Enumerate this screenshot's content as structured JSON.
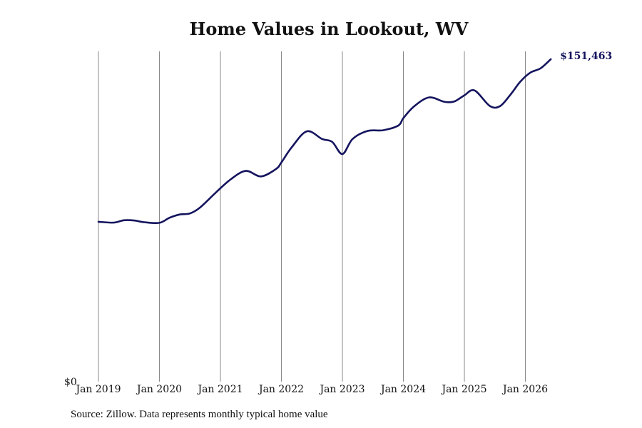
{
  "chart_data": {
    "type": "line",
    "title": "Home Values in Lookout, WV",
    "source": "Source: Zillow. Data represents monthly typical home value",
    "y_axis_label": "$0",
    "end_label": "$151,463",
    "ylim": [
      0,
      151463
    ],
    "x_ticks": [
      "Jan 2019",
      "Jan 2020",
      "Jan 2021",
      "Jan 2022",
      "Jan 2023",
      "Jan 2024",
      "Jan 2025",
      "Jan 2026"
    ],
    "grid": "vertical",
    "line_color": "#14145e",
    "series": [
      {
        "x": [
          "2019-01",
          "2019-04",
          "2019-06",
          "2019-08",
          "2019-10",
          "2020-01",
          "2020-03",
          "2020-05",
          "2020-07",
          "2020-09",
          "2020-12",
          "2021-03",
          "2021-06",
          "2021-09",
          "2021-12",
          "2022-01",
          "2022-03",
          "2022-06",
          "2022-09",
          "2022-11",
          "2023-01",
          "2023-03",
          "2023-06",
          "2023-09",
          "2023-12",
          "2024-01",
          "2024-03",
          "2024-06",
          "2024-09",
          "2024-11",
          "2025-01",
          "2025-03",
          "2025-06",
          "2025-08",
          "2025-10",
          "2025-12",
          "2026-02",
          "2026-04",
          "2026-06"
        ],
        "values": [
          75100,
          74700,
          75800,
          75700,
          74900,
          74600,
          77000,
          78500,
          79000,
          81800,
          88600,
          95000,
          99000,
          96400,
          100000,
          103000,
          110000,
          117600,
          114000,
          112600,
          106900,
          114000,
          117800,
          118100,
          120300,
          123800,
          129100,
          133500,
          131500,
          131600,
          134500,
          136800,
          129500,
          129400,
          134600,
          140900,
          145200,
          147200,
          151463
        ]
      }
    ]
  }
}
